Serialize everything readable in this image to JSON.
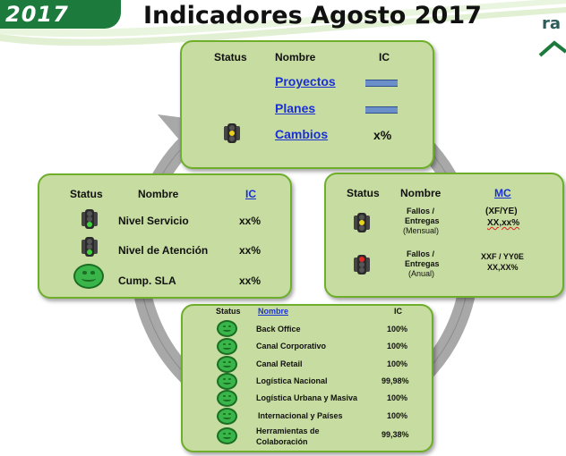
{
  "header": {
    "year": "2017",
    "title": "Indicadores Agosto 2017",
    "logo_fragment": "ra"
  },
  "top_box": {
    "col_status": "Status",
    "col_nombre": "Nombre",
    "col_ic": "IC",
    "rows": [
      {
        "nombre": "Proyectos",
        "ic": ""
      },
      {
        "nombre": "Planes",
        "ic": ""
      },
      {
        "nombre": "Cambios",
        "ic": "x%",
        "light": "yellow"
      }
    ]
  },
  "left_box": {
    "col_status": "Status",
    "col_nombre": "Nombre",
    "col_ic": "IC",
    "rows": [
      {
        "nombre": "Nivel Servicio",
        "ic": "xx%",
        "status": "green-light"
      },
      {
        "nombre": "Nivel de Atención",
        "ic": "xx%",
        "status": "green-light"
      },
      {
        "nombre": "Cump. SLA",
        "ic": "xx%",
        "status": "smiley"
      }
    ]
  },
  "right_box": {
    "col_status": "Status",
    "col_nombre": "Nombre",
    "col_mc": "MC",
    "rows": [
      {
        "nombre_1": "Fallos /",
        "nombre_2": "Entregas",
        "nombre_3": "(Mensual)",
        "mc_1": "(XF/YE)",
        "mc_2": "XX,xx%",
        "status": "yellow-light"
      },
      {
        "nombre_1": "Fallos /",
        "nombre_2": "Entregas",
        "nombre_3": "(Anual)",
        "mc_1": "XXF / YY0E",
        "mc_2": "XX,XX%",
        "status": "red-light"
      }
    ]
  },
  "bottom_box": {
    "col_status": "Status",
    "col_nombre": "Nombre",
    "col_ic": "IC",
    "rows": [
      {
        "nombre": "Back Office",
        "ic": "100%"
      },
      {
        "nombre": "Canal Corporativo",
        "ic": "100%"
      },
      {
        "nombre": "Canal Retail",
        "ic": "100%"
      },
      {
        "nombre": "Logística Nacional",
        "ic": "99,98%"
      },
      {
        "nombre": "Logística Urbana y Masiva",
        "ic": "100%"
      },
      {
        "nombre": "Internacional y Países",
        "ic": "100%"
      },
      {
        "nombre": "Herramientas de",
        "nombre_2": "Colaboración",
        "ic": "99,38%"
      }
    ]
  },
  "colors": {
    "box_fill": "#c7dca0",
    "box_border": "#6fae2a",
    "link": "#1a2fd4",
    "header_green": "#1b7a3c",
    "smiley": "#39b54a"
  }
}
